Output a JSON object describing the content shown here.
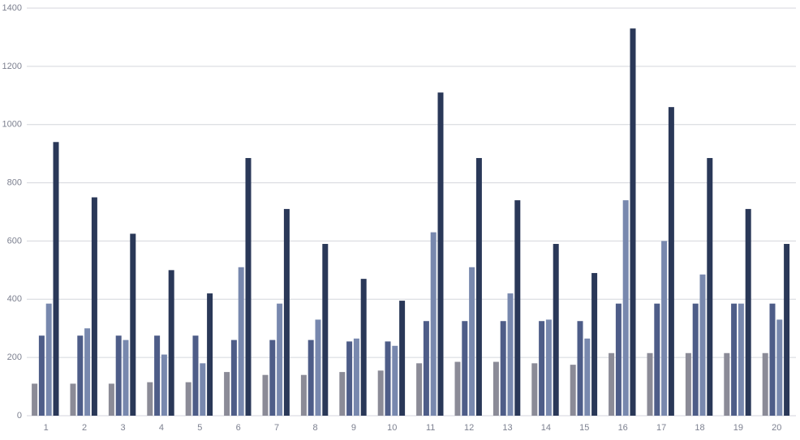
{
  "chart_data": {
    "type": "bar",
    "categories": [
      "1",
      "2",
      "3",
      "4",
      "5",
      "6",
      "7",
      "8",
      "9",
      "10",
      "11",
      "12",
      "13",
      "14",
      "15",
      "16",
      "17",
      "18",
      "19",
      "20"
    ],
    "series": [
      {
        "color": "#8b8b97",
        "values": [
          110,
          110,
          110,
          115,
          115,
          150,
          140,
          140,
          150,
          155,
          180,
          185,
          185,
          180,
          175,
          215,
          215,
          215,
          215,
          215
        ]
      },
      {
        "color": "#4e5d88",
        "values": [
          275,
          275,
          275,
          275,
          275,
          260,
          260,
          260,
          255,
          255,
          325,
          325,
          325,
          325,
          325,
          385,
          385,
          385,
          385,
          385
        ]
      },
      {
        "color": "#7888ae",
        "values": [
          385,
          300,
          260,
          210,
          180,
          510,
          385,
          330,
          265,
          240,
          630,
          510,
          420,
          330,
          265,
          740,
          600,
          485,
          385,
          330
        ]
      },
      {
        "color": "#2a3858",
        "values": [
          940,
          750,
          625,
          500,
          420,
          885,
          710,
          590,
          470,
          395,
          1110,
          885,
          740,
          590,
          490,
          1330,
          1060,
          885,
          710,
          590
        ]
      }
    ],
    "ylim": [
      0,
      1400
    ],
    "yticks": [
      0,
      200,
      400,
      600,
      800,
      1000,
      1200,
      1400
    ],
    "grid": true
  }
}
